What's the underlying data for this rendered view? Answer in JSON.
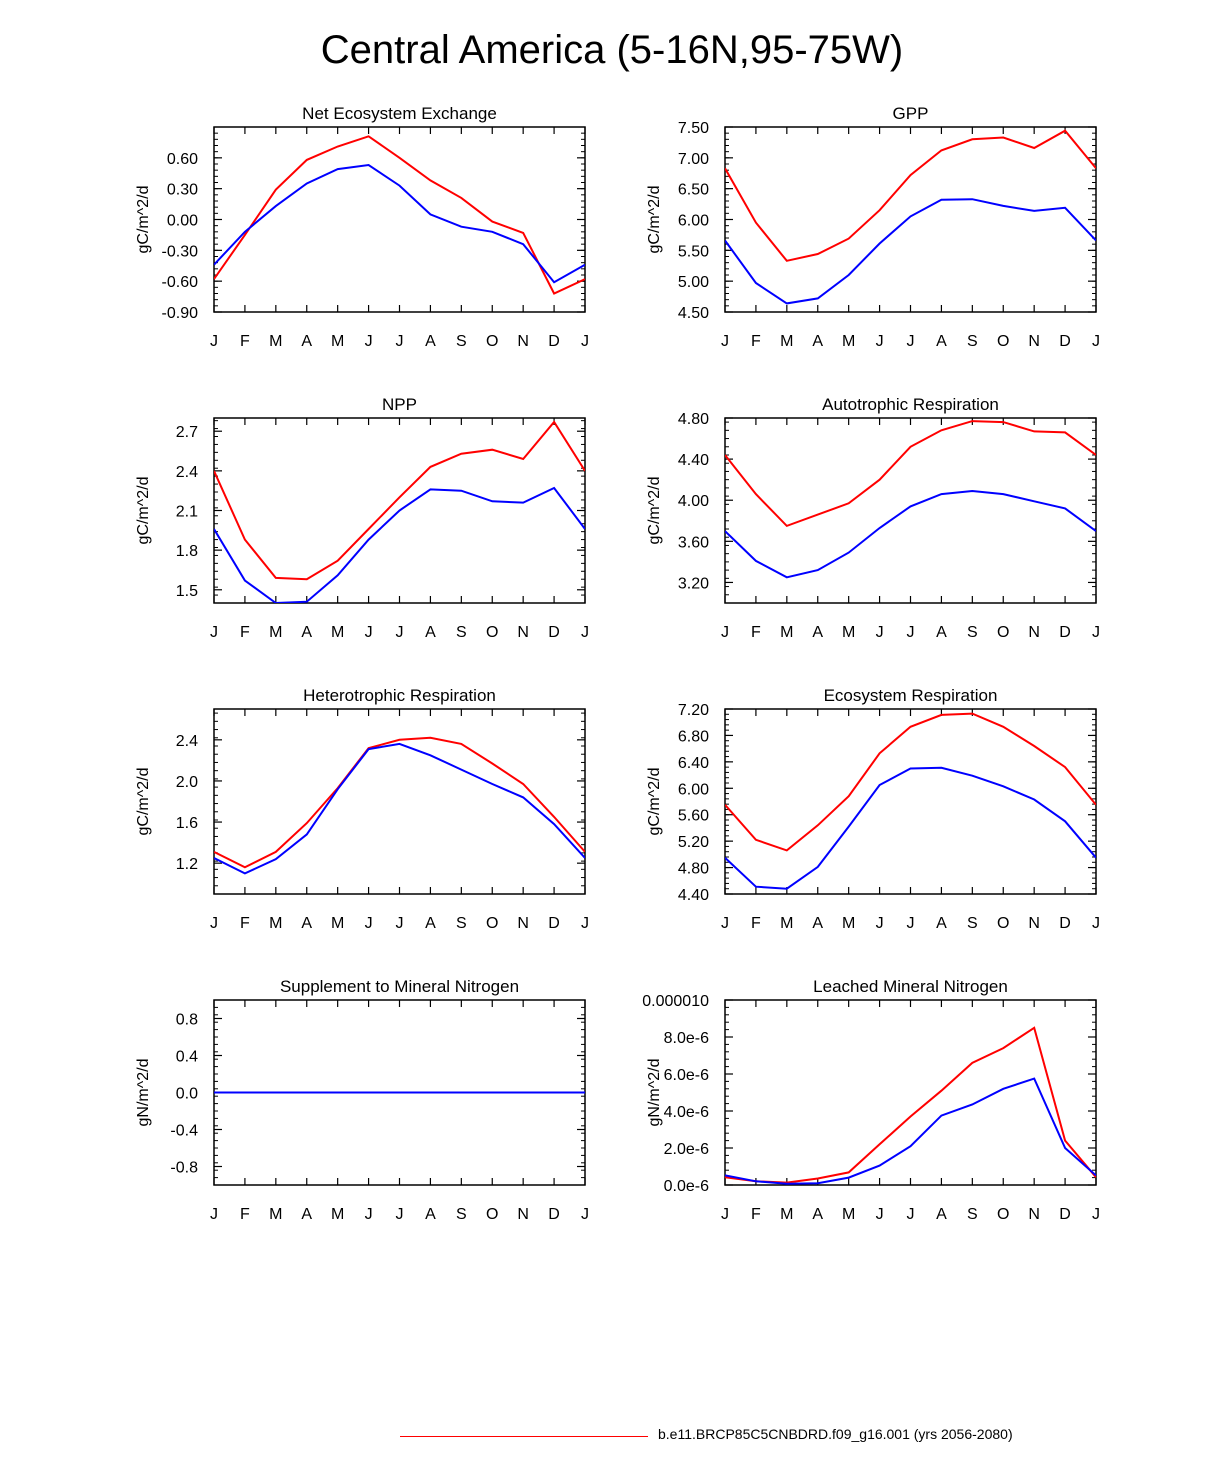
{
  "figure": {
    "title": "Central America (5-16N,95-75W)",
    "legend": [
      {
        "label": "b.e11.BRCP85C5CNBDRD.f09_g16.001 (yrs 2056-2080)",
        "color": "#ff0000"
      }
    ]
  },
  "chart_data": [
    {
      "type": "line",
      "title": "Net Ecosystem Exchange",
      "ylabel": "gC/m^2/d",
      "ylim": [
        -0.9,
        0.9
      ],
      "yticks": [
        -0.9,
        -0.6,
        -0.3,
        0.0,
        0.3,
        0.6
      ],
      "ytick_labels": [
        "-0.90",
        "-0.60",
        "-0.30",
        "0.00",
        "0.30",
        "0.60"
      ],
      "categories": [
        "J",
        "F",
        "M",
        "A",
        "M",
        "J",
        "J",
        "A",
        "S",
        "O",
        "N",
        "D",
        "J"
      ],
      "series": [
        {
          "name": "red",
          "color": "#ff0000",
          "values": [
            -0.58,
            -0.15,
            0.29,
            0.58,
            0.71,
            0.81,
            0.6,
            0.38,
            0.21,
            -0.02,
            -0.13,
            -0.72,
            -0.58
          ]
        },
        {
          "name": "blue",
          "color": "#0000ff",
          "values": [
            -0.44,
            -0.12,
            0.13,
            0.35,
            0.49,
            0.53,
            0.33,
            0.05,
            -0.07,
            -0.12,
            -0.24,
            -0.61,
            -0.44
          ]
        }
      ]
    },
    {
      "type": "line",
      "title": "GPP",
      "ylabel": "gC/m^2/d",
      "ylim": [
        4.5,
        7.5
      ],
      "yticks": [
        4.5,
        5.0,
        5.5,
        6.0,
        6.5,
        7.0,
        7.5
      ],
      "ytick_labels": [
        "4.50",
        "5.00",
        "5.50",
        "6.00",
        "6.50",
        "7.00",
        "7.50"
      ],
      "categories": [
        "J",
        "F",
        "M",
        "A",
        "M",
        "J",
        "J",
        "A",
        "S",
        "O",
        "N",
        "D",
        "J"
      ],
      "series": [
        {
          "name": "red",
          "color": "#ff0000",
          "values": [
            6.83,
            5.95,
            5.33,
            5.44,
            5.69,
            6.15,
            6.72,
            7.12,
            7.3,
            7.33,
            7.16,
            7.44,
            6.83
          ]
        },
        {
          "name": "blue",
          "color": "#0000ff",
          "values": [
            5.66,
            4.97,
            4.64,
            4.72,
            5.1,
            5.61,
            6.05,
            6.32,
            6.33,
            6.22,
            6.14,
            6.19,
            5.66
          ]
        }
      ]
    },
    {
      "type": "line",
      "title": "NPP",
      "ylabel": "gC/m^2/d",
      "ylim": [
        1.4,
        2.8
      ],
      "yticks": [
        1.5,
        1.8,
        2.1,
        2.4,
        2.7
      ],
      "ytick_labels": [
        "1.5",
        "1.8",
        "2.1",
        "2.4",
        "2.7"
      ],
      "categories": [
        "J",
        "F",
        "M",
        "A",
        "M",
        "J",
        "J",
        "A",
        "S",
        "O",
        "N",
        "D",
        "J"
      ],
      "series": [
        {
          "name": "red",
          "color": "#ff0000",
          "values": [
            2.4,
            1.88,
            1.59,
            1.58,
            1.72,
            1.96,
            2.2,
            2.43,
            2.53,
            2.56,
            2.49,
            2.77,
            2.4
          ]
        },
        {
          "name": "blue",
          "color": "#0000ff",
          "values": [
            1.96,
            1.57,
            1.4,
            1.41,
            1.61,
            1.88,
            2.1,
            2.26,
            2.25,
            2.17,
            2.16,
            2.27,
            1.96
          ]
        }
      ]
    },
    {
      "type": "line",
      "title": "Autotrophic Respiration",
      "ylabel": "gC/m^2/d",
      "ylim": [
        3.0,
        4.8
      ],
      "yticks": [
        3.2,
        3.6,
        4.0,
        4.4,
        4.8
      ],
      "ytick_labels": [
        "3.20",
        "3.60",
        "4.00",
        "4.40",
        "4.80"
      ],
      "categories": [
        "J",
        "F",
        "M",
        "A",
        "M",
        "J",
        "J",
        "A",
        "S",
        "O",
        "N",
        "D",
        "J"
      ],
      "series": [
        {
          "name": "red",
          "color": "#ff0000",
          "values": [
            4.44,
            4.06,
            3.75,
            3.86,
            3.97,
            4.2,
            4.52,
            4.68,
            4.77,
            4.76,
            4.67,
            4.66,
            4.44
          ]
        },
        {
          "name": "blue",
          "color": "#0000ff",
          "values": [
            3.7,
            3.41,
            3.25,
            3.32,
            3.49,
            3.73,
            3.94,
            4.06,
            4.09,
            4.06,
            3.99,
            3.92,
            3.7
          ]
        }
      ]
    },
    {
      "type": "line",
      "title": "Heterotrophic Respiration",
      "ylabel": "gC/m^2/d",
      "ylim": [
        0.9,
        2.7
      ],
      "yticks": [
        1.2,
        1.6,
        2.0,
        2.4
      ],
      "ytick_labels": [
        "1.2",
        "1.6",
        "2.0",
        "2.4"
      ],
      "categories": [
        "J",
        "F",
        "M",
        "A",
        "M",
        "J",
        "J",
        "A",
        "S",
        "O",
        "N",
        "D",
        "J"
      ],
      "series": [
        {
          "name": "red",
          "color": "#ff0000",
          "values": [
            1.31,
            1.16,
            1.31,
            1.59,
            1.93,
            2.32,
            2.4,
            2.42,
            2.36,
            2.17,
            1.97,
            1.65,
            1.31
          ]
        },
        {
          "name": "blue",
          "color": "#0000ff",
          "values": [
            1.25,
            1.1,
            1.24,
            1.48,
            1.92,
            2.31,
            2.36,
            2.25,
            2.11,
            1.97,
            1.84,
            1.58,
            1.25
          ]
        }
      ]
    },
    {
      "type": "line",
      "title": "Ecosystem Respiration",
      "ylabel": "gC/m^2/d",
      "ylim": [
        4.4,
        7.2
      ],
      "yticks": [
        4.4,
        4.8,
        5.2,
        5.6,
        6.0,
        6.4,
        6.8,
        7.2
      ],
      "ytick_labels": [
        "4.40",
        "4.80",
        "5.20",
        "5.60",
        "6.00",
        "6.40",
        "6.80",
        "7.20"
      ],
      "categories": [
        "J",
        "F",
        "M",
        "A",
        "M",
        "J",
        "J",
        "A",
        "S",
        "O",
        "N",
        "D",
        "J"
      ],
      "series": [
        {
          "name": "red",
          "color": "#ff0000",
          "values": [
            5.75,
            5.22,
            5.06,
            5.44,
            5.88,
            6.53,
            6.93,
            7.11,
            7.13,
            6.93,
            6.64,
            6.32,
            5.75
          ]
        },
        {
          "name": "blue",
          "color": "#0000ff",
          "values": [
            4.95,
            4.51,
            4.48,
            4.81,
            5.42,
            6.05,
            6.3,
            6.31,
            6.19,
            6.03,
            5.83,
            5.5,
            4.95
          ]
        }
      ]
    },
    {
      "type": "line",
      "title": "Supplement to Mineral Nitrogen",
      "ylabel": "gN/m^2/d",
      "ylim": [
        -1.0,
        1.0
      ],
      "yticks": [
        -0.8,
        -0.4,
        0.0,
        0.4,
        0.8
      ],
      "ytick_labels": [
        "-0.8",
        "-0.4",
        "0.0",
        "0.4",
        "0.8"
      ],
      "categories": [
        "J",
        "F",
        "M",
        "A",
        "M",
        "J",
        "J",
        "A",
        "S",
        "O",
        "N",
        "D",
        "J"
      ],
      "series": [
        {
          "name": "red",
          "color": "#ff0000",
          "values": [
            0,
            0,
            0,
            0,
            0,
            0,
            0,
            0,
            0,
            0,
            0,
            0,
            0
          ]
        },
        {
          "name": "blue",
          "color": "#0000ff",
          "values": [
            0,
            0,
            0,
            0,
            0,
            0,
            0,
            0,
            0,
            0,
            0,
            0,
            0
          ]
        }
      ]
    },
    {
      "type": "line",
      "title": "Leached Mineral Nitrogen",
      "ylabel": "gN/m^2/d",
      "ylim": [
        0,
        1e-05
      ],
      "yticks": [
        0,
        2e-06,
        4e-06,
        6e-06,
        8e-06,
        1e-05
      ],
      "ytick_labels": [
        "0.0e-6",
        "2.0e-6",
        "4.0e-6",
        "6.0e-6",
        "8.0e-6",
        "0.000010"
      ],
      "categories": [
        "J",
        "F",
        "M",
        "A",
        "M",
        "J",
        "J",
        "A",
        "S",
        "O",
        "N",
        "D",
        "J"
      ],
      "series": [
        {
          "name": "red",
          "color": "#ff0000",
          "values": [
            4.2e-07,
            2e-07,
            1.3e-07,
            3.5e-07,
            6.8e-07,
            2.2e-06,
            3.7e-06,
            5.1e-06,
            6.6e-06,
            7.4e-06,
            8.5e-06,
            2.4e-06,
            4.2e-07
          ]
        },
        {
          "name": "blue",
          "color": "#0000ff",
          "values": [
            5.2e-07,
            2e-07,
            7e-08,
            1e-07,
            4e-07,
            1.05e-06,
            2.1e-06,
            3.75e-06,
            4.35e-06,
            5.2e-06,
            5.75e-06,
            2e-06,
            5.2e-07
          ]
        }
      ]
    }
  ]
}
